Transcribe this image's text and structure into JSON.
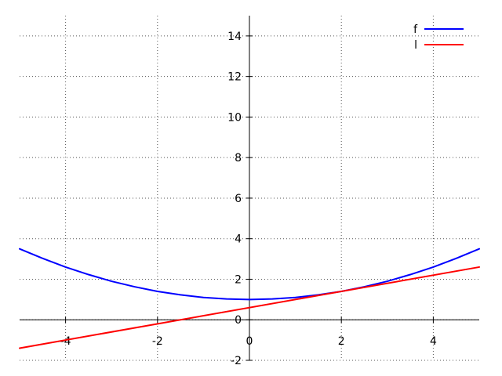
{
  "chart_data": {
    "type": "line",
    "title": "",
    "xlabel": "",
    "ylabel": "",
    "xlim": [
      -5,
      5
    ],
    "ylim": [
      -2,
      15
    ],
    "grid": true,
    "legend_position": "top-right",
    "axes_through_origin": true,
    "x_ticks": [
      -4,
      -2,
      0,
      2,
      4
    ],
    "y_ticks": [
      -2,
      0,
      2,
      4,
      6,
      8,
      10,
      12,
      14
    ],
    "series": [
      {
        "name": "f",
        "color": "#0000ff",
        "x": [
          -5,
          -4.5,
          -4,
          -3.5,
          -3,
          -2.5,
          -2,
          -1.5,
          -1,
          -0.5,
          0,
          0.5,
          1,
          1.5,
          2,
          2.5,
          3,
          3.5,
          4,
          4.5,
          5
        ],
        "y": [
          3.5,
          3.03,
          2.6,
          2.23,
          1.9,
          1.63,
          1.4,
          1.23,
          1.1,
          1.03,
          1.0,
          1.03,
          1.1,
          1.23,
          1.4,
          1.63,
          1.9,
          2.23,
          2.6,
          3.03,
          3.5
        ]
      },
      {
        "name": "l",
        "color": "#ff0000",
        "x": [
          -5,
          5
        ],
        "y": [
          -1.4,
          2.6
        ]
      }
    ]
  }
}
